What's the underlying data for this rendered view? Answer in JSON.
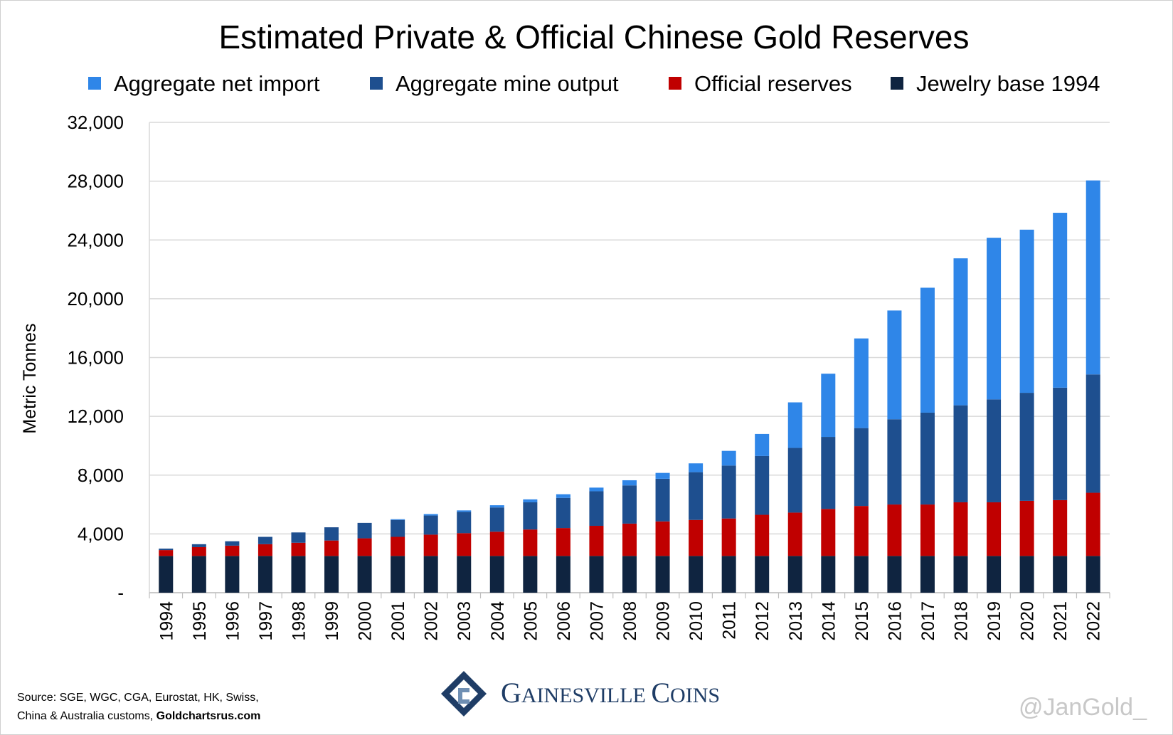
{
  "chart_data": {
    "type": "bar",
    "stacked": true,
    "title": "Estimated Private & Official Chinese Gold Reserves",
    "ylabel": "Metric Tonnes",
    "xlabel": "",
    "ylim": [
      0,
      32000
    ],
    "yticks": [
      0,
      4000,
      8000,
      12000,
      16000,
      20000,
      24000,
      28000,
      32000
    ],
    "ytick_labels": [
      "-",
      "4,000",
      "8,000",
      "12,000",
      "16,000",
      "20,000",
      "24,000",
      "28,000",
      "32,000"
    ],
    "grid": "horizontal",
    "legend_position": "top",
    "categories": [
      "1994",
      "1995",
      "1996",
      "1997",
      "1998",
      "1999",
      "2000",
      "2001",
      "2002",
      "2003",
      "2004",
      "2005",
      "2006",
      "2007",
      "2008",
      "2009",
      "2010",
      "2011",
      "2012",
      "2013",
      "2014",
      "2015",
      "2016",
      "2017",
      "2018",
      "2019",
      "2020",
      "2021",
      "2022"
    ],
    "series": [
      {
        "name": "Jewelry base 1994",
        "color": "#0f2440",
        "values": [
          2500,
          2500,
          2500,
          2500,
          2500,
          2500,
          2500,
          2500,
          2500,
          2500,
          2500,
          2500,
          2500,
          2500,
          2500,
          2500,
          2500,
          2500,
          2500,
          2500,
          2500,
          2500,
          2500,
          2500,
          2500,
          2500,
          2500,
          2500,
          2500
        ]
      },
      {
        "name": "Official reserves",
        "color": "#c00000",
        "values": [
          400,
          600,
          700,
          800,
          900,
          1050,
          1200,
          1300,
          1450,
          1550,
          1650,
          1800,
          1900,
          2050,
          2200,
          2350,
          2450,
          2550,
          2800,
          2950,
          3200,
          3400,
          3500,
          3500,
          3650,
          3650,
          3750,
          3800,
          4300
        ]
      },
      {
        "name": "Aggregate mine output",
        "color": "#1e4f8f",
        "values": [
          100,
          200,
          300,
          500,
          700,
          900,
          1050,
          1150,
          1300,
          1450,
          1650,
          1850,
          2050,
          2350,
          2600,
          2900,
          3250,
          3600,
          4000,
          4400,
          4900,
          5300,
          5800,
          6250,
          6600,
          7000,
          7350,
          7650,
          8050
        ]
      },
      {
        "name": "Aggregate net import",
        "color": "#2f86e8",
        "values": [
          0,
          0,
          0,
          0,
          0,
          0,
          0,
          50,
          100,
          100,
          150,
          200,
          250,
          250,
          350,
          400,
          600,
          1000,
          1500,
          3100,
          4300,
          6100,
          7400,
          8500,
          10000,
          11000,
          11100,
          11900,
          13200
        ]
      }
    ],
    "legend_order": [
      "Aggregate net import",
      "Aggregate mine output",
      "Official reserves",
      "Jewelry base 1994"
    ]
  },
  "source": {
    "line1": "Source: SGE, WGC, CGA, Eurostat, HK, Swiss,",
    "line2_plain": "China & Australia customs, ",
    "line2_site": "Goldchartsrus.com"
  },
  "brand": {
    "name": "Gainesville Coins",
    "logo_icon": "gainesville-g-logo-icon"
  },
  "handle": "@JanGold_"
}
